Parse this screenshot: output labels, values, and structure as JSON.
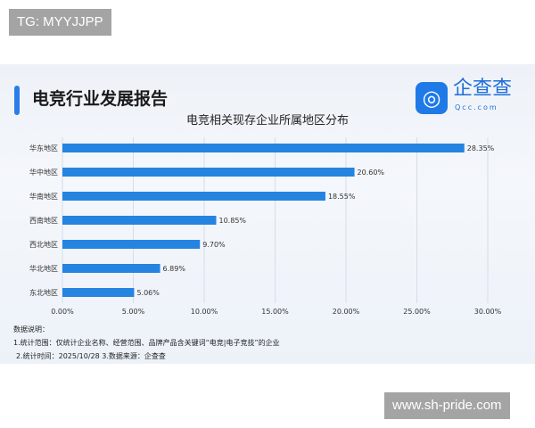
{
  "watermarks": {
    "top": "TG: MYYJJPP",
    "bottom": "www.sh-pride.com"
  },
  "header": {
    "report_title": "电竞行业发展报告",
    "logo_text": "企查查",
    "logo_sub": "Qcc.com"
  },
  "chart_data": {
    "type": "bar",
    "orientation": "horizontal",
    "title": "电竞相关现存企业所属地区分布",
    "categories": [
      "华东地区",
      "华中地区",
      "华南地区",
      "西南地区",
      "西北地区",
      "华北地区",
      "东北地区"
    ],
    "values": [
      28.35,
      20.6,
      18.55,
      10.85,
      9.7,
      6.89,
      5.06
    ],
    "value_labels": [
      "28.35%",
      "20.60%",
      "18.55%",
      "10.85%",
      "9.70%",
      "6.89%",
      "5.06%"
    ],
    "xlim": [
      0,
      30
    ],
    "x_ticks": [
      "0.00%",
      "5.00%",
      "10.00%",
      "15.00%",
      "20.00%",
      "25.00%",
      "30.00%"
    ],
    "grid": true,
    "bar_color": "#2484e0"
  },
  "notes": [
    "数据说明：",
    "1.统计范围：仅统计企业名称、经营范围、品牌产品含关键词“电竞|电子竞技”的企业",
    "2.统计时间：2025/10/28 3.数据来源：企查查"
  ]
}
